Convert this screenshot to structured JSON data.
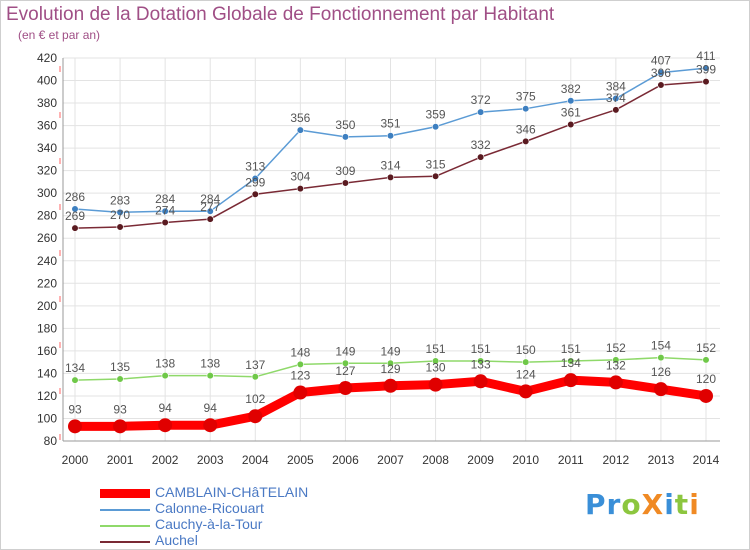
{
  "title": "Evolution de la Dotation Globale de Fonctionnement par Habitant",
  "subtitle": "(en € et par an)",
  "logo": {
    "text": "ProXiti",
    "letters": [
      {
        "char": "P",
        "color": "#3a8fd8"
      },
      {
        "char": "r",
        "color": "#3a8fd8"
      },
      {
        "char": "o",
        "color": "#8cc63f"
      },
      {
        "char": "X",
        "color": "#f08a24"
      },
      {
        "char": "i",
        "color": "#3a8fd8"
      },
      {
        "char": "t",
        "color": "#8cc63f"
      },
      {
        "char": "i",
        "color": "#f08a24"
      }
    ]
  },
  "colors": {
    "grid": "#e3e3e3",
    "axis": "#999999",
    "tick_text": "#333333",
    "label_text": "#555555"
  },
  "chart_data": {
    "type": "line",
    "title": "Evolution de la Dotation Globale de Fonctionnement par Habitant",
    "subtitle": "(en € et par an)",
    "x": [
      "2000",
      "2001",
      "2002",
      "2003",
      "2004",
      "2005",
      "2006",
      "2007",
      "2008",
      "2009",
      "2010",
      "2011",
      "2012",
      "2013",
      "2014"
    ],
    "ylim": [
      80,
      420
    ],
    "yticks": [
      80,
      100,
      120,
      140,
      160,
      180,
      200,
      220,
      240,
      260,
      280,
      300,
      320,
      340,
      360,
      380,
      400,
      420
    ],
    "grid": true,
    "legend_position": "bottom-left",
    "series": [
      {
        "name": "Calonne-Ricouart",
        "color": "#5b9bd5",
        "marker": "#3d7fc0",
        "values": [
          286,
          283,
          284,
          284,
          313,
          356,
          350,
          351,
          359,
          372,
          375,
          382,
          384,
          407,
          411
        ]
      },
      {
        "name": "Cauchy-à-la-Tour",
        "color": "#8fd96a",
        "marker": "#6fc848",
        "values": [
          134,
          135,
          138,
          138,
          137,
          148,
          149,
          149,
          151,
          151,
          150,
          151,
          152,
          154,
          152
        ]
      },
      {
        "name": "Auchel",
        "color": "#7a2a35",
        "marker": "#5a1a20",
        "values": [
          269,
          270,
          274,
          277,
          299,
          304,
          309,
          314,
          315,
          332,
          346,
          361,
          374,
          396,
          399
        ]
      },
      {
        "name": "CAMBLAIN-CHâTELAIN",
        "color": "#ff0000",
        "marker": "#e00000",
        "values": [
          93,
          93,
          94,
          94,
          102,
          123,
          127,
          129,
          130,
          133,
          124,
          134,
          132,
          126,
          120
        ]
      }
    ],
    "legend": [
      "CAMBLAIN-CHâTELAIN",
      "Calonne-Ricouart",
      "Cauchy-à-la-Tour",
      "Auchel"
    ]
  }
}
